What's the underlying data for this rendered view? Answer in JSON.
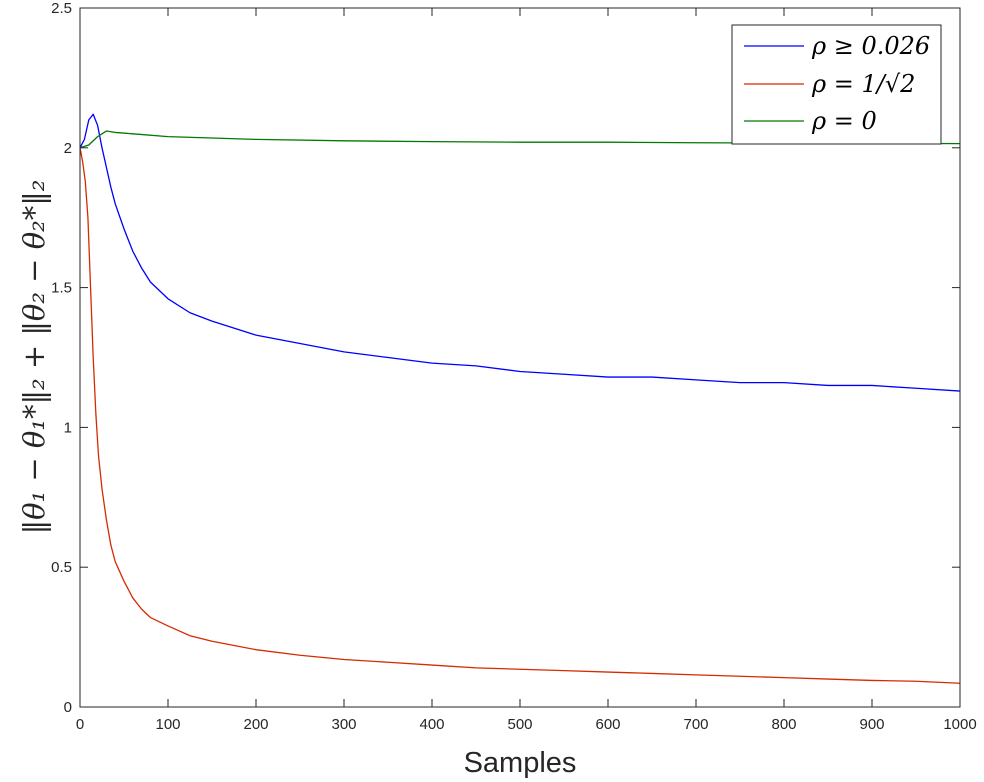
{
  "chart_data": {
    "type": "line",
    "xlabel": "Samples",
    "ylabel": "‖θ₁ − θ₁*‖₂ + ‖θ₂ − θ₂*‖₂",
    "xlim": [
      0,
      1000
    ],
    "ylim": [
      0,
      2.5
    ],
    "x_ticks": [
      "0",
      "100",
      "200",
      "300",
      "400",
      "500",
      "600",
      "700",
      "800",
      "900",
      "1000"
    ],
    "y_ticks": [
      "0",
      "0.5",
      "1",
      "1.5",
      "2",
      "2.5"
    ],
    "grid": false,
    "legend_position": "top-right",
    "series": [
      {
        "name": "ρ ≥ 0.026",
        "color": "#0000ff",
        "x": [
          0,
          5,
          10,
          15,
          20,
          25,
          30,
          35,
          40,
          50,
          60,
          70,
          80,
          100,
          125,
          150,
          200,
          250,
          300,
          350,
          400,
          450,
          500,
          550,
          600,
          650,
          700,
          750,
          800,
          850,
          900,
          950,
          1000
        ],
        "y": [
          2.0,
          2.03,
          2.1,
          2.12,
          2.08,
          2.0,
          1.93,
          1.86,
          1.8,
          1.71,
          1.63,
          1.57,
          1.52,
          1.46,
          1.41,
          1.38,
          1.33,
          1.3,
          1.27,
          1.25,
          1.23,
          1.22,
          1.2,
          1.19,
          1.18,
          1.18,
          1.17,
          1.16,
          1.16,
          1.15,
          1.15,
          1.14,
          1.13
        ]
      },
      {
        "name": "ρ = 1/√2",
        "color": "#d62a00",
        "x": [
          0,
          3,
          6,
          9,
          12,
          15,
          18,
          21,
          25,
          30,
          35,
          40,
          50,
          60,
          70,
          80,
          100,
          125,
          150,
          200,
          250,
          300,
          350,
          400,
          450,
          500,
          550,
          600,
          650,
          700,
          750,
          800,
          850,
          900,
          950,
          1000
        ],
        "y": [
          2.0,
          1.95,
          1.88,
          1.75,
          1.5,
          1.25,
          1.05,
          0.9,
          0.78,
          0.67,
          0.58,
          0.52,
          0.45,
          0.39,
          0.35,
          0.32,
          0.29,
          0.255,
          0.235,
          0.205,
          0.185,
          0.17,
          0.16,
          0.15,
          0.14,
          0.135,
          0.13,
          0.125,
          0.12,
          0.115,
          0.11,
          0.105,
          0.1,
          0.095,
          0.092,
          0.085
        ]
      },
      {
        "name": "ρ = 0",
        "color": "#007a00",
        "x": [
          0,
          10,
          20,
          30,
          40,
          60,
          100,
          200,
          300,
          400,
          500,
          600,
          700,
          800,
          900,
          1000
        ],
        "y": [
          2.0,
          2.01,
          2.04,
          2.06,
          2.055,
          2.05,
          2.04,
          2.03,
          2.025,
          2.022,
          2.02,
          2.02,
          2.018,
          2.017,
          2.016,
          2.015
        ]
      }
    ]
  }
}
